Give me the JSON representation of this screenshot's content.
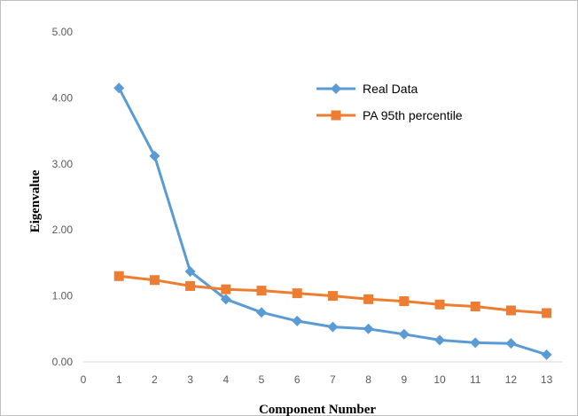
{
  "chart_data": {
    "type": "line",
    "xlabel": "Component Number",
    "ylabel": "Eigenvalue",
    "xlim": [
      0,
      13
    ],
    "ylim": [
      0,
      5
    ],
    "x_ticks": [
      "0",
      "1",
      "2",
      "3",
      "4",
      "5",
      "6",
      "7",
      "8",
      "9",
      "10",
      "11",
      "12",
      "13"
    ],
    "y_ticks": [
      "0.00",
      "1.00",
      "2.00",
      "3.00",
      "4.00",
      "5.00"
    ],
    "x": [
      1,
      2,
      3,
      4,
      5,
      6,
      7,
      8,
      9,
      10,
      11,
      12,
      13
    ],
    "grid": false,
    "legend_position": "top-right",
    "series": [
      {
        "name": "Real Data",
        "color": "#5b9bd5",
        "marker": "diamond",
        "values": [
          4.15,
          3.12,
          1.37,
          0.95,
          0.75,
          0.62,
          0.53,
          0.5,
          0.42,
          0.33,
          0.29,
          0.28,
          0.11
        ]
      },
      {
        "name": "PA 95th percentile",
        "color": "#ed7d31",
        "marker": "square",
        "values": [
          1.3,
          1.24,
          1.15,
          1.1,
          1.08,
          1.04,
          1.0,
          0.95,
          0.92,
          0.87,
          0.84,
          0.78,
          0.74
        ]
      }
    ]
  }
}
